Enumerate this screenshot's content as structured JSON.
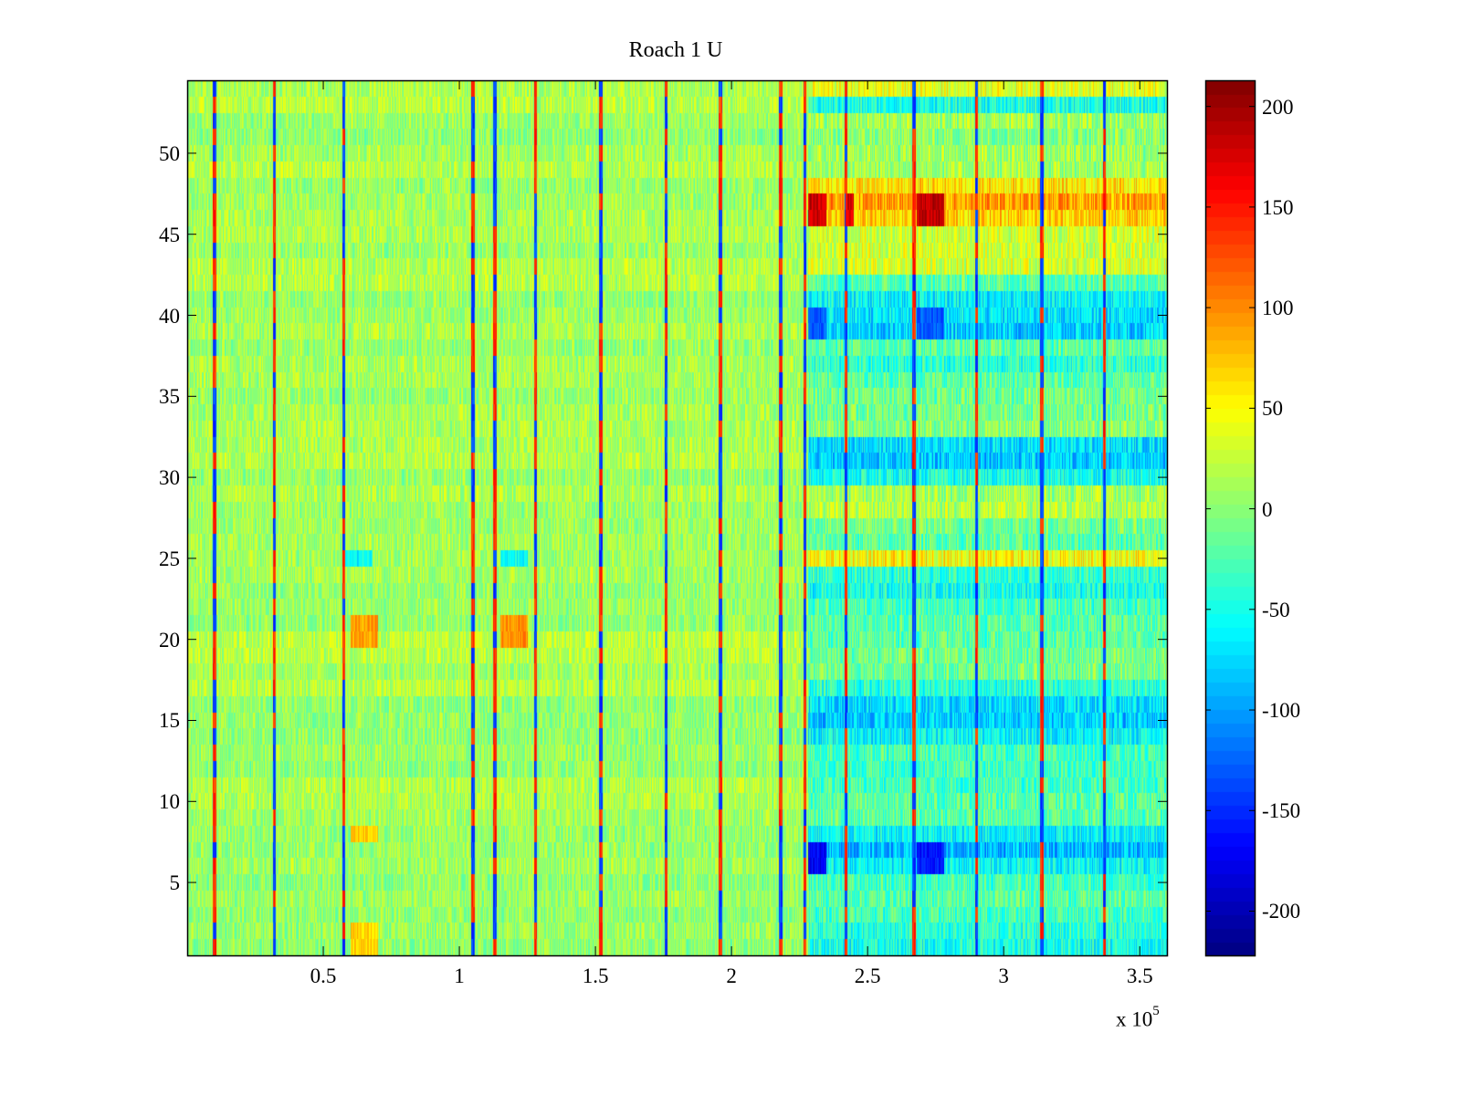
{
  "chart_data": {
    "type": "heatmap",
    "title": "Roach 1 U",
    "xlabel": "",
    "ylabel": "",
    "x_multiplier": "x 10",
    "x_multiplier_exp": "5",
    "xlim": [
      0,
      3.6
    ],
    "ylim": [
      0.5,
      54.5
    ],
    "x_ticks": [
      "0.5",
      "1",
      "1.5",
      "2",
      "2.5",
      "3",
      "3.5"
    ],
    "x_tick_values": [
      0.5,
      1,
      1.5,
      2,
      2.5,
      3,
      3.5
    ],
    "y_ticks": [
      "5",
      "10",
      "15",
      "20",
      "25",
      "30",
      "35",
      "40",
      "45",
      "50"
    ],
    "y_tick_values": [
      5,
      10,
      15,
      20,
      25,
      30,
      35,
      40,
      45,
      50
    ],
    "rows": 54,
    "colormap": "jet",
    "clim": [
      -222,
      213
    ],
    "colorbar_ticks": [
      "-200",
      "-150",
      "-100",
      "-50",
      "0",
      "50",
      "100",
      "150",
      "200"
    ],
    "colorbar_tick_values": [
      -200,
      -150,
      -100,
      -50,
      0,
      50,
      100,
      150,
      200
    ],
    "colorbar_location": "right",
    "regime_change_x": 2.28,
    "left_region_mean": 12,
    "noise_amplitude": 28,
    "right_region_row_means": [
      -50,
      -40,
      -30,
      -20,
      -30,
      -60,
      -90,
      -60,
      -20,
      -20,
      -30,
      -30,
      -30,
      -60,
      -80,
      -70,
      -40,
      -10,
      -10,
      -20,
      -20,
      -30,
      -50,
      -40,
      50,
      -20,
      -10,
      20,
      10,
      -50,
      -80,
      -70,
      0,
      -10,
      -10,
      -20,
      -40,
      -20,
      -80,
      -70,
      -60,
      -20,
      30,
      30,
      30,
      70,
      90,
      60,
      10,
      10,
      0,
      10,
      -50,
      40
    ],
    "vertical_stripes_x": [
      0.1,
      0.32,
      0.575,
      1.05,
      1.13,
      1.28,
      1.52,
      1.76,
      1.96,
      2.18,
      2.27,
      2.42,
      2.67,
      2.9,
      3.14,
      3.37
    ],
    "patches": [
      {
        "x": [
          0.6,
          0.7
        ],
        "rows": [
          20,
          21
        ],
        "value": 90
      },
      {
        "x": [
          1.15,
          1.25
        ],
        "rows": [
          20,
          21
        ],
        "value": 95
      },
      {
        "x": [
          0.6,
          0.7
        ],
        "rows": [
          1,
          2
        ],
        "value": 70
      },
      {
        "x": [
          0.6,
          0.7
        ],
        "rows": [
          8,
          8
        ],
        "value": 70
      },
      {
        "x": [
          0.58,
          0.68
        ],
        "rows": [
          25,
          25
        ],
        "value": -60
      },
      {
        "x": [
          1.15,
          1.25
        ],
        "rows": [
          25,
          25
        ],
        "value": -55
      },
      {
        "x": [
          2.28,
          2.35
        ],
        "rows": [
          46,
          47
        ],
        "value": 180
      },
      {
        "x": [
          2.42,
          2.45
        ],
        "rows": [
          46,
          47
        ],
        "value": 170
      },
      {
        "x": [
          2.68,
          2.78
        ],
        "rows": [
          46,
          47
        ],
        "value": 185
      },
      {
        "x": [
          2.28,
          2.35
        ],
        "rows": [
          6,
          7
        ],
        "value": -170
      },
      {
        "x": [
          2.68,
          2.78
        ],
        "rows": [
          6,
          7
        ],
        "value": -160
      },
      {
        "x": [
          2.28,
          2.35
        ],
        "rows": [
          39,
          40
        ],
        "value": -130
      },
      {
        "x": [
          2.68,
          2.78
        ],
        "rows": [
          39,
          40
        ],
        "value": -130
      }
    ]
  }
}
